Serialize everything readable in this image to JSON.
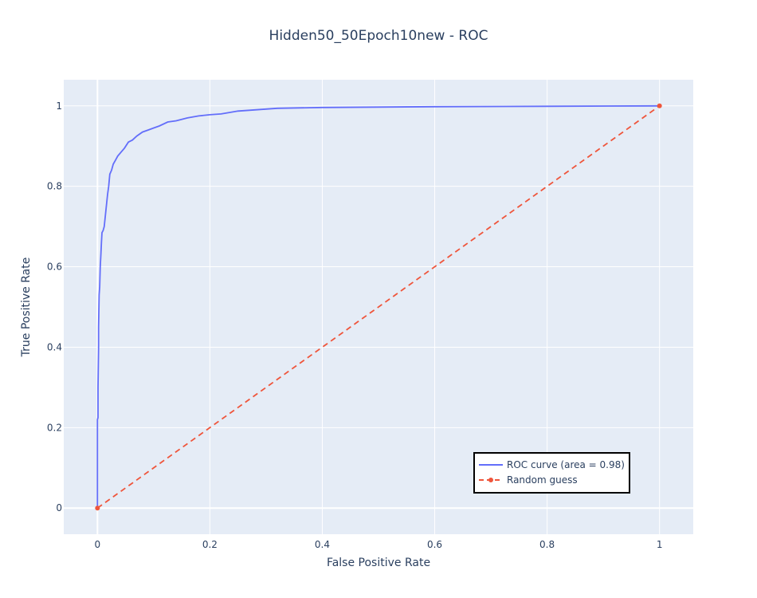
{
  "chart_data": {
    "type": "line",
    "title": "Hidden50_50Epoch10new - ROC",
    "xlabel": "False Positive Rate",
    "ylabel": "True Positive Rate",
    "xlim": [
      -0.06,
      1.06
    ],
    "ylim": [
      -0.065,
      1.065
    ],
    "xticks": [
      0,
      0.2,
      0.4,
      0.6,
      0.8,
      1
    ],
    "xtick_labels": [
      "0",
      "0.2",
      "0.4",
      "0.6",
      "0.8",
      "1"
    ],
    "yticks": [
      0,
      0.2,
      0.4,
      0.6,
      0.8,
      1
    ],
    "ytick_labels": [
      "0",
      "0.2",
      "0.4",
      "0.6",
      "0.8",
      "1"
    ],
    "grid": true,
    "legend_position": "bottom-right",
    "background_color": "#e5ecf6",
    "series": [
      {
        "name": "ROC curve (area = 0.98)",
        "color": "#636efa",
        "dash": "solid",
        "markers": false,
        "x": [
          0,
          0.0,
          0.001,
          0.001,
          0.002,
          0.002,
          0.003,
          0.004,
          0.005,
          0.006,
          0.007,
          0.008,
          0.01,
          0.012,
          0.015,
          0.018,
          0.02,
          0.022,
          0.025,
          0.028,
          0.032,
          0.036,
          0.042,
          0.048,
          0.055,
          0.062,
          0.07,
          0.08,
          0.09,
          0.1,
          0.11,
          0.125,
          0.14,
          0.16,
          0.18,
          0.2,
          0.22,
          0.25,
          0.28,
          0.32,
          0.4,
          0.5,
          0.6,
          0.8,
          1.0
        ],
        "y": [
          0,
          0.22,
          0.225,
          0.3,
          0.4,
          0.45,
          0.53,
          0.55,
          0.6,
          0.63,
          0.66,
          0.685,
          0.69,
          0.7,
          0.74,
          0.78,
          0.8,
          0.83,
          0.84,
          0.855,
          0.865,
          0.875,
          0.885,
          0.895,
          0.91,
          0.915,
          0.925,
          0.935,
          0.94,
          0.945,
          0.95,
          0.96,
          0.963,
          0.97,
          0.975,
          0.978,
          0.98,
          0.987,
          0.99,
          0.994,
          0.996,
          0.997,
          0.998,
          0.999,
          1.0
        ]
      },
      {
        "name": "Random guess",
        "color": "#ef553b",
        "dash": "dash",
        "markers": true,
        "x": [
          0,
          1
        ],
        "y": [
          0,
          1
        ]
      }
    ]
  }
}
